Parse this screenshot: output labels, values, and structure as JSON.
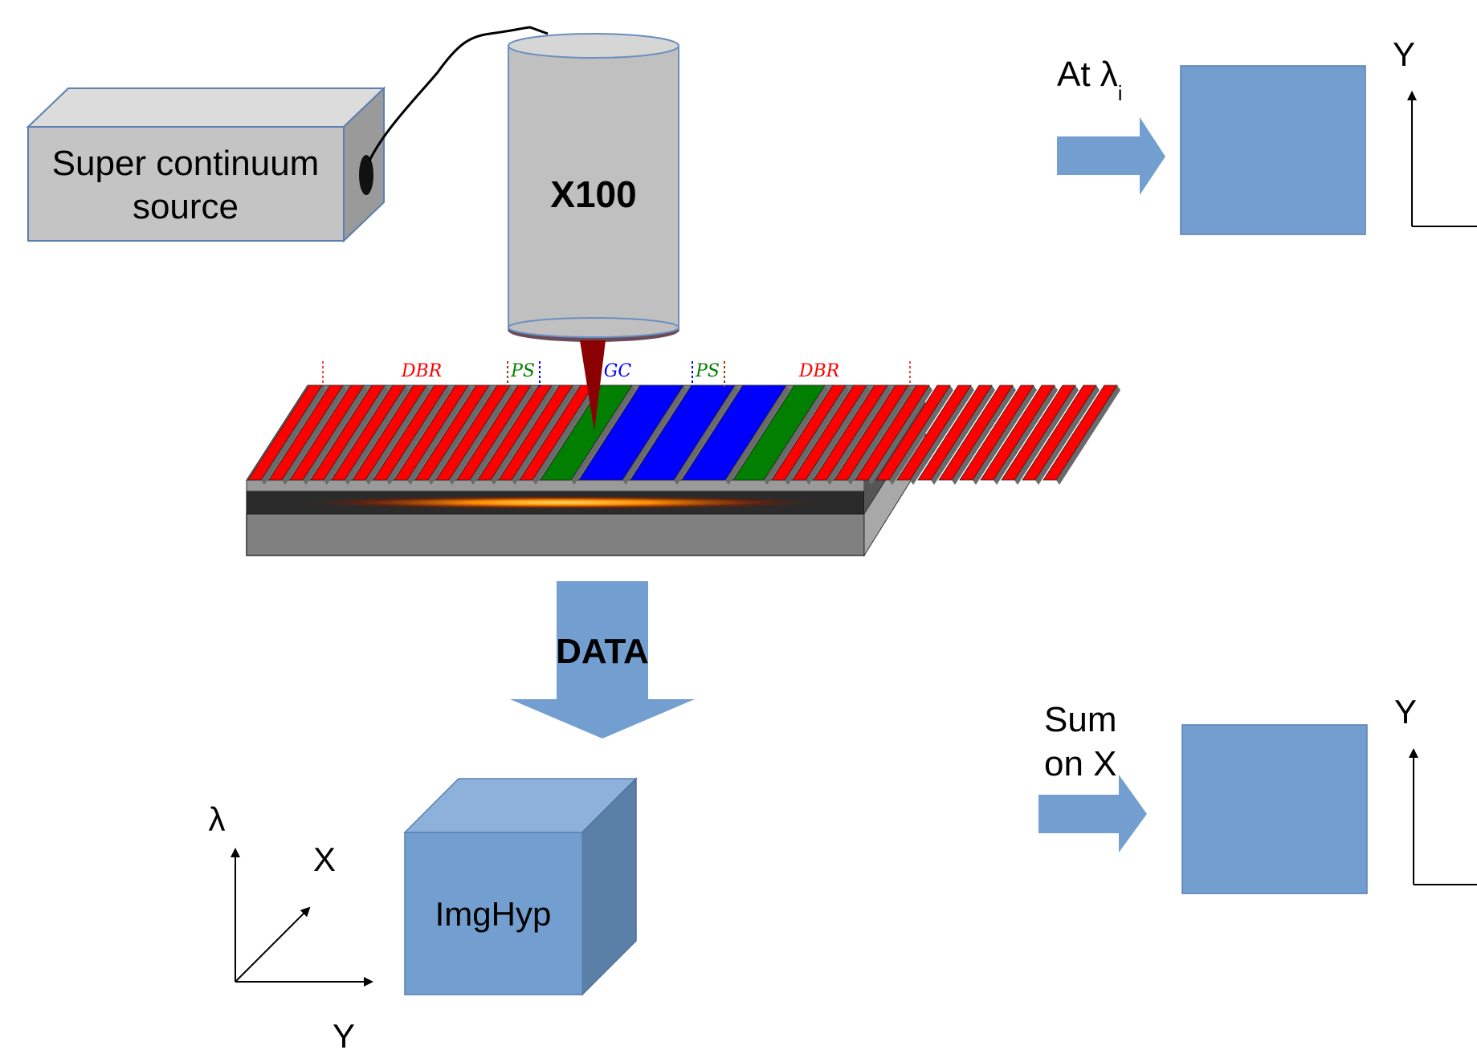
{
  "source": {
    "label_line1": "Super continuum",
    "label_line2": "source"
  },
  "objective": {
    "label": "X100"
  },
  "sample": {
    "labels": {
      "dbr_left": "DBR",
      "ps_left": "PS",
      "gc": "GC",
      "ps_right": "PS",
      "dbr_right": "DBR"
    },
    "colors": {
      "dbr": "#ff0000",
      "ps": "#007f00",
      "gc": "#0000ff"
    }
  },
  "data_arrow": {
    "label": "DATA"
  },
  "cube": {
    "label": "ImgHyp"
  },
  "cube_axes": {
    "vertical": "λ",
    "diagonal": "X",
    "horizontal": "Y"
  },
  "panel_top": {
    "arrow_label": "At λ",
    "arrow_label_sub": "i",
    "axis_label": "Y"
  },
  "panel_bottom": {
    "arrow_label_line1": "Sum",
    "arrow_label_line2": "on X",
    "axis_label": "Y"
  },
  "colors": {
    "accent_blue": "#729fcf",
    "box_gray": "#c0c0c0"
  }
}
